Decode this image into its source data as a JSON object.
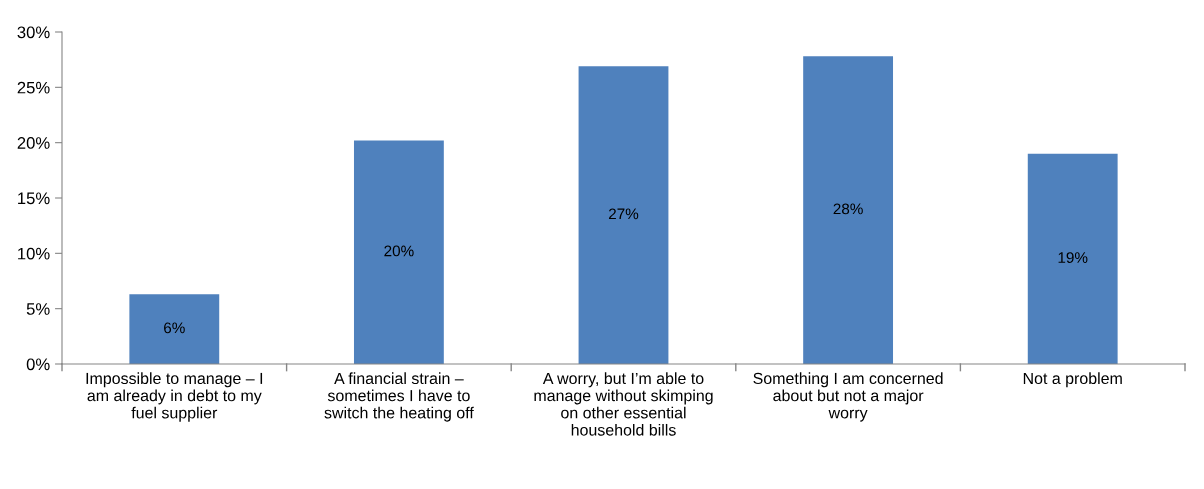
{
  "chart_data": {
    "type": "bar",
    "categories": [
      "Impossible to manage – I am already in debt to my fuel supplier",
      "A financial strain – sometimes I have to switch the heating off",
      "A worry, but I’m able to manage without skimping on other essential household bills",
      "Something I am concerned about but not a major worry",
      "Not a problem"
    ],
    "values": [
      6.3,
      20.2,
      26.9,
      27.8,
      19.0
    ],
    "value_labels": [
      "6%",
      "20%",
      "27%",
      "28%",
      "19%"
    ],
    "color": "#4f81bd",
    "ylim": [
      0,
      30
    ],
    "yticks": [
      {
        "value": 0,
        "label": "0%"
      },
      {
        "value": 5,
        "label": "5%"
      },
      {
        "value": 10,
        "label": "10%"
      },
      {
        "value": 15,
        "label": "15%"
      },
      {
        "value": 20,
        "label": "20%"
      },
      {
        "value": 25,
        "label": "25%"
      },
      {
        "value": 30,
        "label": "30%"
      }
    ],
    "grid": false,
    "legend": false
  }
}
